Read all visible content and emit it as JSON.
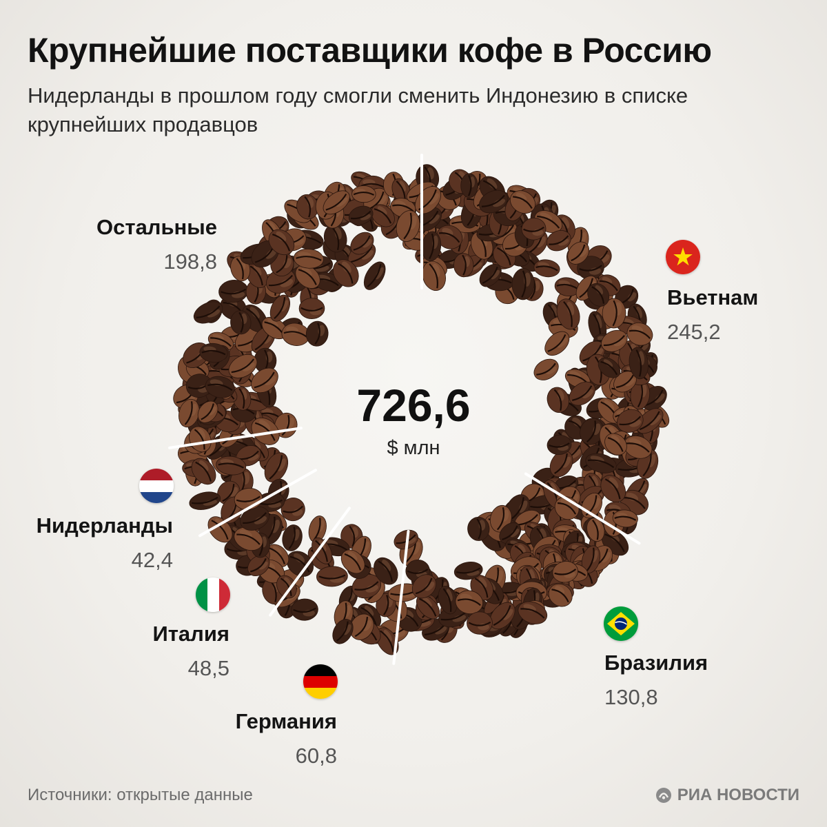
{
  "title": "Крупнейшие поставщики кофе в Россию",
  "subtitle": "Нидерланды в прошлом году смогли сменить Индонезию в списке крупнейших продавцов",
  "center": {
    "value": "726,6",
    "unit": "$ млн"
  },
  "chart_data": {
    "type": "pie",
    "style": "donut made of coffee beans",
    "total": 726.6,
    "unit": "$ млн",
    "categories": [
      "Вьетнам",
      "Бразилия",
      "Германия",
      "Италия",
      "Нидерланды",
      "Остальные"
    ],
    "values": [
      245.2,
      130.8,
      60.8,
      48.5,
      42.4,
      198.8
    ],
    "value_labels": [
      "245,2",
      "130,8",
      "60,8",
      "48,5",
      "42,4",
      "198,8"
    ],
    "flags": [
      "vietnam-flag",
      "brazil-flag",
      "germany-flag",
      "italy-flag",
      "netherlands-flag",
      ""
    ]
  },
  "source": "Источники: открытые данные",
  "brand": "РИА НОВОСТИ",
  "colors": {
    "bean_dark": "#3a2116",
    "bean_mid": "#5a3322",
    "bean_light": "#7a4a30",
    "divider": "#ffffff",
    "background": "#f1efeb"
  }
}
